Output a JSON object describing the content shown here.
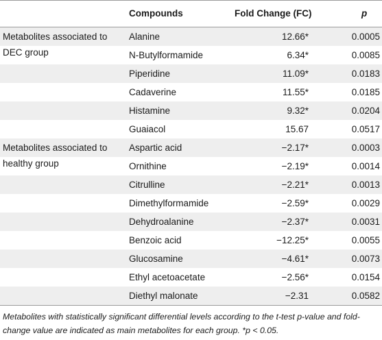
{
  "header": {
    "compounds": "Compounds",
    "fold_change": "Fold Change (FC)",
    "p": "p"
  },
  "groups": [
    {
      "label": "Metabolites associated to DEC group",
      "rows": [
        {
          "compound": "Alanine",
          "fc": "12.66*",
          "p": "0.0005"
        },
        {
          "compound": "N-Butylformamide",
          "fc": "6.34*",
          "p": "0.0085"
        },
        {
          "compound": "Piperidine",
          "fc": "11.09*",
          "p": "0.0183"
        },
        {
          "compound": "Cadaverine",
          "fc": "11.55*",
          "p": "0.0185"
        },
        {
          "compound": "Histamine",
          "fc": "9.32*",
          "p": "0.0204"
        },
        {
          "compound": "Guaiacol",
          "fc": "15.67",
          "p": "0.0517"
        }
      ]
    },
    {
      "label": "Metabolites associated to healthy group",
      "rows": [
        {
          "compound": "Aspartic acid",
          "fc": "−2.17*",
          "p": "0.0003"
        },
        {
          "compound": "Ornithine",
          "fc": "−2.19*",
          "p": "0.0014"
        },
        {
          "compound": "Citrulline",
          "fc": "−2.21*",
          "p": "0.0013"
        },
        {
          "compound": "Dimethylformamide",
          "fc": "−2.59*",
          "p": "0.0029"
        },
        {
          "compound": "Dehydroalanine",
          "fc": "−2.37*",
          "p": "0.0031"
        },
        {
          "compound": "Benzoic acid",
          "fc": "−12.25*",
          "p": "0.0055"
        },
        {
          "compound": "Glucosamine",
          "fc": "−4.61*",
          "p": "0.0073"
        },
        {
          "compound": "Ethyl acetoacetate",
          "fc": "−2.56*",
          "p": "0.0154"
        },
        {
          "compound": "Diethyl malonate",
          "fc": "−2.31",
          "p": "0.0582"
        }
      ]
    }
  ],
  "footnote": "Metabolites with statistically significant differential levels according to the t-test p-value and fold-change value are indicated as main metabolites for each group. *p < 0.05."
}
